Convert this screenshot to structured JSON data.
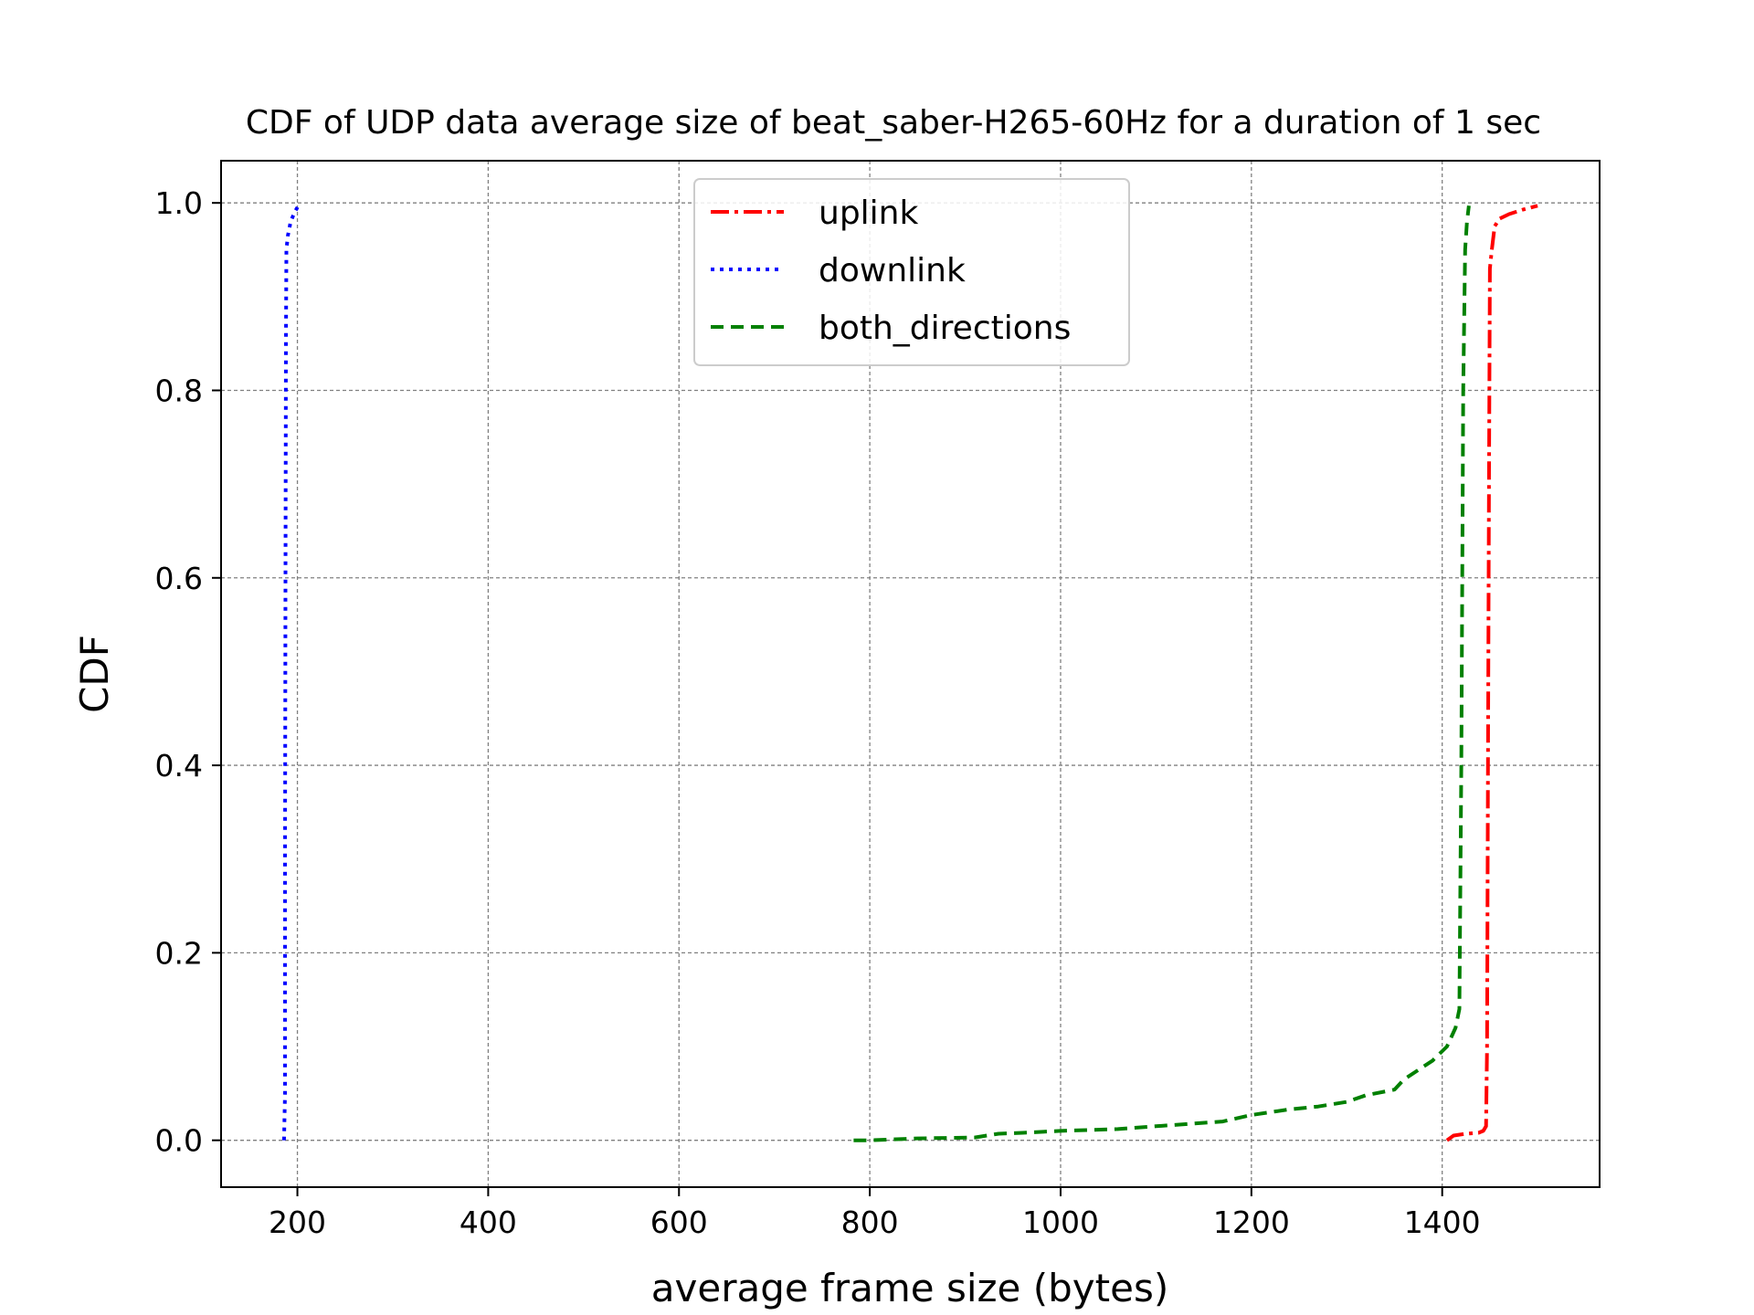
{
  "chart_data": {
    "type": "line",
    "title": "CDF of UDP data average size of beat_saber-H265-60Hz for a duration of 1 sec",
    "xlabel": "average frame size (bytes)",
    "ylabel": "CDF",
    "xlim": [
      120,
      1565
    ],
    "ylim": [
      -0.05,
      1.045
    ],
    "xticks": [
      200,
      400,
      600,
      800,
      1000,
      1200,
      1400
    ],
    "yticks": [
      0.0,
      0.2,
      0.4,
      0.6,
      0.8,
      1.0
    ],
    "grid": true,
    "legend_position": "upper center",
    "series": [
      {
        "name": "uplink",
        "color": "#ff0000",
        "style": "dashdot",
        "points": [
          [
            1405,
            0.0
          ],
          [
            1412,
            0.005
          ],
          [
            1425,
            0.007
          ],
          [
            1438,
            0.008
          ],
          [
            1443,
            0.01
          ],
          [
            1446,
            0.015
          ],
          [
            1447,
            0.1
          ],
          [
            1448,
            0.4
          ],
          [
            1449,
            0.7
          ],
          [
            1450,
            0.93
          ],
          [
            1452,
            0.95
          ],
          [
            1455,
            0.975
          ],
          [
            1460,
            0.983
          ],
          [
            1470,
            0.988
          ],
          [
            1485,
            0.993
          ],
          [
            1500,
            0.997
          ]
        ]
      },
      {
        "name": "downlink",
        "color": "#0000ff",
        "style": "dotted",
        "points": [
          [
            186,
            0.0
          ],
          [
            187,
            0.05
          ],
          [
            187,
            0.3
          ],
          [
            187.5,
            0.6
          ],
          [
            188,
            0.85
          ],
          [
            188.5,
            0.95
          ],
          [
            190,
            0.965
          ],
          [
            193,
            0.98
          ],
          [
            197,
            0.99
          ],
          [
            201,
            0.997
          ]
        ]
      },
      {
        "name": "both_directions",
        "color": "#008000",
        "style": "dashed",
        "points": [
          [
            783,
            0.0
          ],
          [
            800,
            0.0
          ],
          [
            850,
            0.002
          ],
          [
            910,
            0.003
          ],
          [
            935,
            0.007
          ],
          [
            960,
            0.008
          ],
          [
            1000,
            0.01
          ],
          [
            1060,
            0.012
          ],
          [
            1100,
            0.015
          ],
          [
            1170,
            0.02
          ],
          [
            1200,
            0.027
          ],
          [
            1240,
            0.033
          ],
          [
            1270,
            0.036
          ],
          [
            1300,
            0.041
          ],
          [
            1320,
            0.048
          ],
          [
            1350,
            0.054
          ],
          [
            1360,
            0.065
          ],
          [
            1390,
            0.085
          ],
          [
            1405,
            0.1
          ],
          [
            1414,
            0.12
          ],
          [
            1418,
            0.14
          ],
          [
            1420,
            0.4
          ],
          [
            1422,
            0.8
          ],
          [
            1424,
            0.95
          ],
          [
            1426,
            0.98
          ],
          [
            1428,
            0.997
          ]
        ]
      }
    ]
  }
}
